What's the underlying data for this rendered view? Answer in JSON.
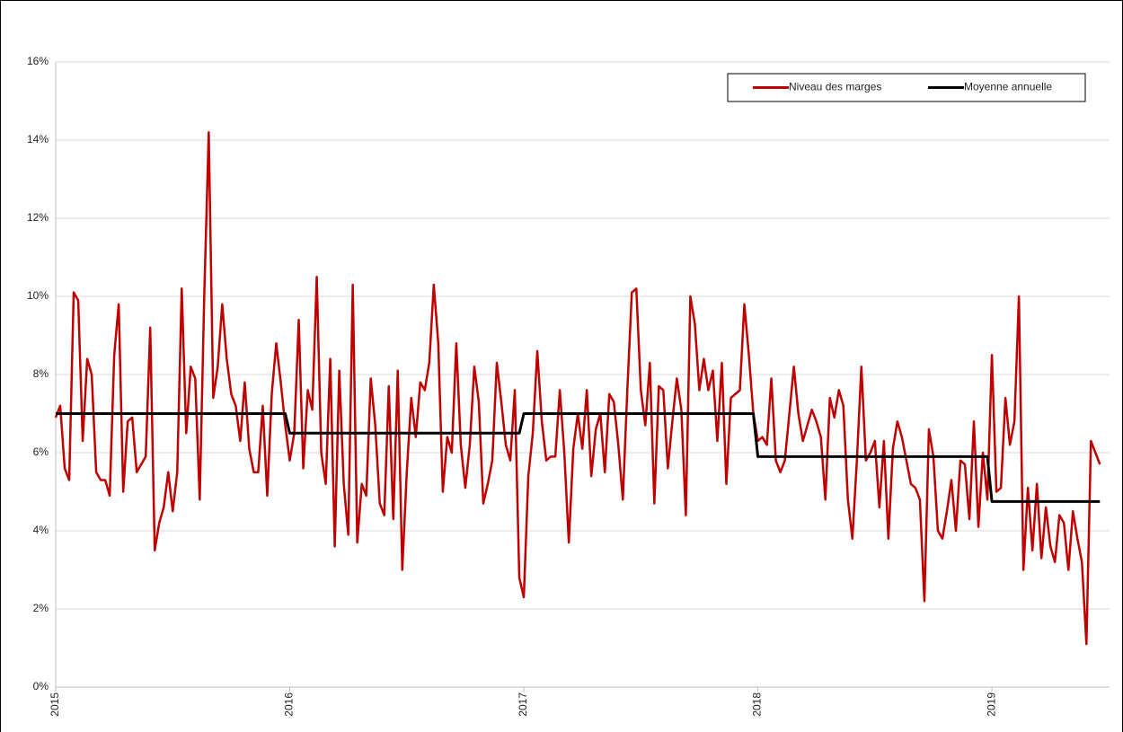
{
  "chart_data": {
    "type": "line",
    "categories": [
      "2015",
      null,
      null,
      null,
      null,
      null,
      null,
      null,
      null,
      null,
      null,
      null,
      null,
      null,
      null,
      null,
      null,
      null,
      null,
      null,
      null,
      null,
      null,
      null,
      null,
      null,
      null,
      null,
      null,
      null,
      null,
      null,
      null,
      null,
      null,
      null,
      null,
      null,
      null,
      null,
      null,
      null,
      null,
      null,
      null,
      null,
      null,
      null,
      null,
      null,
      null,
      null,
      "2016",
      null,
      null,
      null,
      null,
      null,
      null,
      null,
      null,
      null,
      null,
      null,
      null,
      null,
      null,
      null,
      null,
      null,
      null,
      null,
      null,
      null,
      null,
      null,
      null,
      null,
      null,
      null,
      null,
      null,
      null,
      null,
      null,
      null,
      null,
      null,
      null,
      null,
      null,
      null,
      null,
      null,
      null,
      null,
      null,
      null,
      null,
      null,
      null,
      null,
      null,
      null,
      "2017",
      null,
      null,
      null,
      null,
      null,
      null,
      null,
      null,
      null,
      null,
      null,
      null,
      null,
      null,
      null,
      null,
      null,
      null,
      null,
      null,
      null,
      null,
      null,
      null,
      null,
      null,
      null,
      null,
      null,
      null,
      null,
      null,
      null,
      null,
      null,
      null,
      null,
      null,
      null,
      null,
      null,
      null,
      null,
      null,
      null,
      null,
      null,
      null,
      null,
      null,
      null,
      "2018",
      null,
      null,
      null,
      null,
      null,
      null,
      null,
      null,
      null,
      null,
      null,
      null,
      null,
      null,
      null,
      null,
      null,
      null,
      null,
      null,
      null,
      null,
      null,
      null,
      null,
      null,
      null,
      null,
      null,
      null,
      null,
      null,
      null,
      null,
      null,
      null,
      null,
      null,
      null,
      null,
      null,
      null,
      null,
      null,
      null,
      null,
      null,
      null,
      null,
      null,
      null,
      "2019",
      null,
      null,
      null,
      null,
      null,
      null,
      null,
      null,
      null,
      null,
      null,
      null,
      null,
      null,
      null,
      null,
      null,
      null,
      null,
      null,
      null,
      null,
      null,
      null
    ],
    "series": [
      {
        "name": "Niveau des marges",
        "color": "#c00000",
        "values": [
          6.9,
          7.2,
          5.6,
          5.3,
          10.1,
          9.9,
          6.3,
          8.4,
          8.0,
          5.5,
          5.3,
          5.3,
          4.9,
          8.5,
          9.8,
          5.0,
          6.8,
          6.9,
          5.5,
          5.7,
          5.9,
          9.2,
          3.5,
          4.2,
          4.6,
          5.5,
          4.5,
          5.5,
          10.2,
          6.5,
          8.2,
          7.9,
          4.8,
          10.0,
          14.2,
          7.4,
          8.2,
          9.8,
          8.4,
          7.5,
          7.2,
          6.3,
          7.8,
          6.1,
          5.5,
          5.5,
          7.2,
          4.9,
          7.5,
          8.8,
          7.8,
          6.7,
          5.8,
          6.5,
          9.4,
          5.6,
          7.6,
          7.1,
          10.5,
          6.0,
          5.2,
          8.4,
          3.6,
          8.1,
          5.2,
          3.9,
          10.3,
          3.7,
          5.2,
          4.9,
          7.9,
          6.7,
          4.7,
          4.4,
          7.7,
          4.3,
          8.1,
          3.0,
          5.5,
          7.4,
          6.4,
          7.8,
          7.6,
          8.3,
          10.3,
          8.8,
          5.0,
          6.4,
          6.0,
          8.8,
          6.2,
          5.1,
          6.2,
          8.2,
          7.3,
          4.7,
          5.2,
          5.8,
          8.3,
          7.3,
          6.2,
          5.8,
          7.6,
          2.8,
          2.3,
          5.4,
          6.5,
          8.6,
          6.8,
          5.8,
          5.9,
          5.9,
          7.6,
          6.0,
          3.7,
          6.1,
          7.0,
          6.1,
          7.6,
          5.4,
          6.6,
          7.0,
          5.5,
          7.5,
          7.3,
          6.2,
          4.8,
          7.6,
          10.1,
          10.2,
          7.6,
          6.7,
          8.3,
          4.7,
          7.7,
          7.6,
          5.6,
          6.8,
          7.9,
          7.1,
          4.4,
          10.0,
          9.3,
          7.6,
          8.4,
          7.6,
          8.1,
          6.3,
          8.3,
          5.2,
          7.4,
          7.5,
          7.6,
          9.8,
          8.5,
          7.0,
          6.3,
          6.4,
          6.2,
          7.9,
          5.8,
          5.5,
          5.8,
          7.0,
          8.2,
          7.0,
          6.3,
          6.7,
          7.1,
          6.8,
          6.4,
          4.8,
          7.4,
          6.9,
          7.6,
          7.2,
          4.8,
          3.8,
          5.8,
          8.2,
          5.8,
          6.0,
          6.3,
          4.6,
          6.3,
          3.8,
          6.1,
          6.8,
          6.4,
          5.8,
          5.2,
          5.1,
          4.8,
          2.2,
          6.6,
          5.9,
          4.0,
          3.8,
          4.5,
          5.3,
          4.0,
          5.8,
          5.7,
          4.3,
          6.8,
          4.1,
          6.0,
          4.8,
          8.5,
          5.0,
          5.1,
          7.4,
          6.2,
          6.8,
          10.0,
          3.0,
          5.1,
          3.5,
          5.2,
          3.3,
          4.6,
          3.6,
          3.2,
          4.4,
          4.2,
          3.0,
          4.5,
          3.8,
          3.2,
          1.1,
          6.3,
          6.0,
          5.7
        ]
      },
      {
        "name": "Moyenne annuelle",
        "color": "#000000",
        "values": [
          7,
          7,
          7,
          7,
          7,
          7,
          7,
          7,
          7,
          7,
          7,
          7,
          7,
          7,
          7,
          7,
          7,
          7,
          7,
          7,
          7,
          7,
          7,
          7,
          7,
          7,
          7,
          7,
          7,
          7,
          7,
          7,
          7,
          7,
          7,
          7,
          7,
          7,
          7,
          7,
          7,
          7,
          7,
          7,
          7,
          7,
          7,
          7,
          7,
          7,
          7,
          7,
          6.5,
          6.5,
          6.5,
          6.5,
          6.5,
          6.5,
          6.5,
          6.5,
          6.5,
          6.5,
          6.5,
          6.5,
          6.5,
          6.5,
          6.5,
          6.5,
          6.5,
          6.5,
          6.5,
          6.5,
          6.5,
          6.5,
          6.5,
          6.5,
          6.5,
          6.5,
          6.5,
          6.5,
          6.5,
          6.5,
          6.5,
          6.5,
          6.5,
          6.5,
          6.5,
          6.5,
          6.5,
          6.5,
          6.5,
          6.5,
          6.5,
          6.5,
          6.5,
          6.5,
          6.5,
          6.5,
          6.5,
          6.5,
          6.5,
          6.5,
          6.5,
          6.5,
          7,
          7,
          7,
          7,
          7,
          7,
          7,
          7,
          7,
          7,
          7,
          7,
          7,
          7,
          7,
          7,
          7,
          7,
          7,
          7,
          7,
          7,
          7,
          7,
          7,
          7,
          7,
          7,
          7,
          7,
          7,
          7,
          7,
          7,
          7,
          7,
          7,
          7,
          7,
          7,
          7,
          7,
          7,
          7,
          7,
          7,
          7,
          7,
          7,
          7,
          7,
          7,
          5.9,
          5.9,
          5.9,
          5.9,
          5.9,
          5.9,
          5.9,
          5.9,
          5.9,
          5.9,
          5.9,
          5.9,
          5.9,
          5.9,
          5.9,
          5.9,
          5.9,
          5.9,
          5.9,
          5.9,
          5.9,
          5.9,
          5.9,
          5.9,
          5.9,
          5.9,
          5.9,
          5.9,
          5.9,
          5.9,
          5.9,
          5.9,
          5.9,
          5.9,
          5.9,
          5.9,
          5.9,
          5.9,
          5.9,
          5.9,
          5.9,
          5.9,
          5.9,
          5.9,
          5.9,
          5.9,
          5.9,
          5.9,
          5.9,
          5.9,
          5.9,
          5.9,
          4.75,
          4.75,
          4.75,
          4.75,
          4.75,
          4.75,
          4.75,
          4.75,
          4.75,
          4.75,
          4.75,
          4.75,
          4.75,
          4.75,
          4.75,
          4.75,
          4.75,
          4.75,
          4.75,
          4.75,
          4.75,
          4.75,
          4.75,
          4.75,
          4.75
        ]
      }
    ],
    "ylim": [
      0,
      16
    ],
    "yticks": [
      {
        "value": 0,
        "label": "0%"
      },
      {
        "value": 2,
        "label": "2%"
      },
      {
        "value": 4,
        "label": "4%"
      },
      {
        "value": 6,
        "label": "6%"
      },
      {
        "value": 8,
        "label": "8%"
      },
      {
        "value": 10,
        "label": "10%"
      },
      {
        "value": 12,
        "label": "12%"
      },
      {
        "value": 14,
        "label": "14%"
      },
      {
        "value": 16,
        "label": "16%"
      }
    ],
    "grid": true,
    "legend": "top-right"
  }
}
